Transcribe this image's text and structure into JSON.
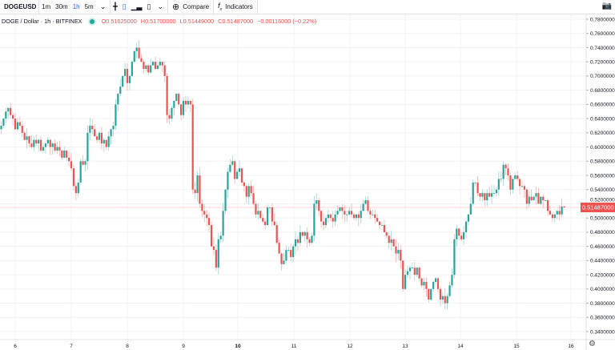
{
  "toolbar": {
    "symbol": "DOGEUSD",
    "intervals": [
      "1m",
      "30m",
      "1h",
      "5m"
    ],
    "active_interval": "1h",
    "compare_label": "Compare",
    "indicators_label": "Indicators"
  },
  "legend": {
    "title": "DOGE / Dollar · 1h · BITFINEX",
    "open": "O0.51625000",
    "high": "H0.51700000",
    "low": "L0.51449000",
    "close": "C0.51487000",
    "change": "−0.00116000 (−0.22%)"
  },
  "colors": {
    "up": "#26a69a",
    "down": "#ef5350",
    "grid": "#f0f3fa",
    "price_line": "#ef5350"
  },
  "chart_data": {
    "type": "candlestick",
    "title": "DOGE / Dollar · 1h · BITFINEX",
    "ylim": [
      0.33,
      0.79
    ],
    "y_ticks": [
      "0.78000000",
      "0.76000000",
      "0.74000000",
      "0.72000000",
      "0.70000000",
      "0.68000000",
      "0.66000000",
      "0.64000000",
      "0.62000000",
      "0.60000000",
      "0.58000000",
      "0.56000000",
      "0.54000000",
      "0.52000000",
      "0.50000000",
      "0.48000000",
      "0.46000000",
      "0.44000000",
      "0.42000000",
      "0.40000000",
      "0.38000000",
      "0.36000000",
      "0.34000000"
    ],
    "x_ticks": [
      "6",
      "7",
      "8",
      "9",
      "10",
      "11",
      "12",
      "13",
      "14",
      "15",
      "16"
    ],
    "bold_x_ticks": [
      "10"
    ],
    "last_price": 0.51487,
    "last_price_label": "0.51487000",
    "first_open": 0.625,
    "closes": [
      0.63,
      0.64,
      0.65,
      0.655,
      0.645,
      0.64,
      0.625,
      0.635,
      0.63,
      0.62,
      0.61,
      0.615,
      0.605,
      0.6,
      0.61,
      0.605,
      0.61,
      0.595,
      0.6,
      0.605,
      0.61,
      0.6,
      0.605,
      0.595,
      0.6,
      0.595,
      0.585,
      0.595,
      0.585,
      0.58,
      0.57,
      0.545,
      0.535,
      0.55,
      0.58,
      0.575,
      0.58,
      0.62,
      0.63,
      0.625,
      0.615,
      0.61,
      0.62,
      0.605,
      0.61,
      0.6,
      0.615,
      0.625,
      0.63,
      0.66,
      0.675,
      0.685,
      0.7,
      0.71,
      0.69,
      0.7,
      0.72,
      0.735,
      0.74,
      0.725,
      0.72,
      0.71,
      0.715,
      0.705,
      0.715,
      0.72,
      0.71,
      0.715,
      0.72,
      0.715,
      0.7,
      0.645,
      0.64,
      0.655,
      0.665,
      0.675,
      0.66,
      0.645,
      0.665,
      0.66,
      0.665,
      0.66,
      0.54,
      0.535,
      0.56,
      0.52,
      0.51,
      0.505,
      0.5,
      0.49,
      0.46,
      0.455,
      0.43,
      0.47,
      0.475,
      0.51,
      0.54,
      0.565,
      0.575,
      0.58,
      0.555,
      0.565,
      0.57,
      0.55,
      0.545,
      0.53,
      0.545,
      0.535,
      0.52,
      0.505,
      0.51,
      0.5,
      0.495,
      0.49,
      0.515,
      0.515,
      0.495,
      0.49,
      0.465,
      0.45,
      0.435,
      0.44,
      0.455,
      0.455,
      0.445,
      0.46,
      0.47,
      0.465,
      0.48,
      0.475,
      0.48,
      0.47,
      0.465,
      0.475,
      0.52,
      0.525,
      0.51,
      0.495,
      0.49,
      0.5,
      0.505,
      0.5,
      0.495,
      0.505,
      0.51,
      0.515,
      0.51,
      0.505,
      0.505,
      0.51,
      0.505,
      0.5,
      0.505,
      0.5,
      0.51,
      0.52,
      0.525,
      0.51,
      0.505,
      0.505,
      0.5,
      0.495,
      0.49,
      0.49,
      0.48,
      0.475,
      0.465,
      0.47,
      0.46,
      0.45,
      0.455,
      0.44,
      0.4,
      0.42,
      0.425,
      0.43,
      0.43,
      0.42,
      0.43,
      0.415,
      0.405,
      0.41,
      0.4,
      0.385,
      0.4,
      0.41,
      0.415,
      0.4,
      0.385,
      0.39,
      0.38,
      0.39,
      0.405,
      0.42,
      0.47,
      0.485,
      0.475,
      0.47,
      0.48,
      0.495,
      0.505,
      0.52,
      0.55,
      0.55,
      0.535,
      0.53,
      0.535,
      0.525,
      0.535,
      0.53,
      0.535,
      0.535,
      0.54,
      0.555,
      0.555,
      0.575,
      0.57,
      0.56,
      0.54,
      0.555,
      0.56,
      0.555,
      0.545,
      0.545,
      0.54,
      0.52,
      0.53,
      0.525,
      0.53,
      0.535,
      0.52,
      0.53,
      0.525,
      0.525,
      0.51,
      0.505,
      0.5,
      0.505,
      0.51,
      0.505,
      0.51625,
      0.51487
    ]
  }
}
